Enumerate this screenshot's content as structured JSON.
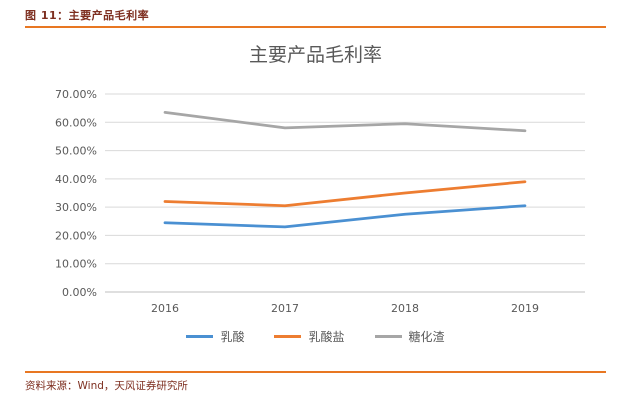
{
  "header": {
    "figure_label": "图 11：主要产品毛利率"
  },
  "footer": {
    "source": "资料来源：Wind，天风证券研究所"
  },
  "colors": {
    "accent_rule": "#e87722",
    "caption_text": "#7e2f20",
    "axis_text": "#595959",
    "gridline": "#d9d9d9",
    "axis_line": "#bfbfbf"
  },
  "chart_data": {
    "type": "line",
    "title": "主要产品毛利率",
    "categories": [
      "2016",
      "2017",
      "2018",
      "2019"
    ],
    "series": [
      {
        "name": "乳酸",
        "color": "#4a90d2",
        "values": [
          24.5,
          23.0,
          27.5,
          30.5
        ]
      },
      {
        "name": "乳酸盐",
        "color": "#ed7d31",
        "values": [
          32.0,
          30.5,
          35.0,
          39.0
        ]
      },
      {
        "name": "糖化渣",
        "color": "#a6a6a6",
        "values": [
          63.5,
          58.0,
          59.5,
          57.0
        ]
      }
    ],
    "ylim": [
      0,
      70
    ],
    "ytick_step": 10,
    "ytick_format": "0.00%",
    "xlabel": "",
    "ylabel": "",
    "grid": true,
    "legend_position": "bottom"
  }
}
